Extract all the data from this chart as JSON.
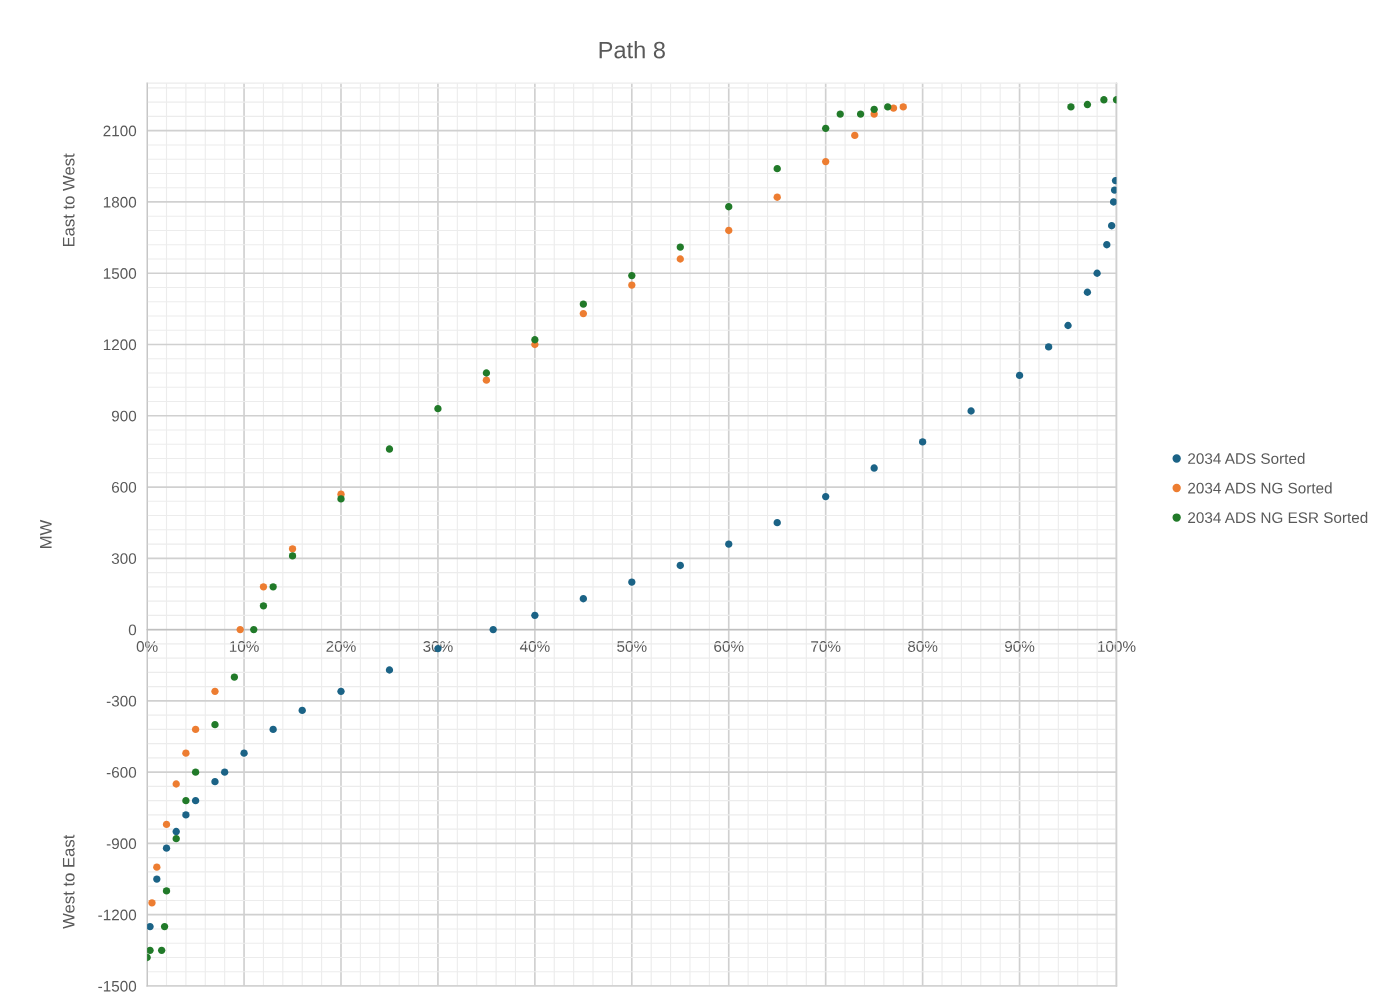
{
  "chart_data": {
    "type": "scatter",
    "title": "Path 8",
    "ylabel": "MW",
    "annotations": [
      "East to West",
      "West to East"
    ],
    "xlim": [
      0,
      100
    ],
    "xticks": [
      {
        "value": 0,
        "label": "0%"
      },
      {
        "value": 10,
        "label": "10%"
      },
      {
        "value": 20,
        "label": "20%"
      },
      {
        "value": 30,
        "label": "30%"
      },
      {
        "value": 40,
        "label": "40%"
      },
      {
        "value": 50,
        "label": "50%"
      },
      {
        "value": 60,
        "label": "60%"
      },
      {
        "value": 70,
        "label": "70%"
      },
      {
        "value": 80,
        "label": "80%"
      },
      {
        "value": 90,
        "label": "90%"
      },
      {
        "value": 100,
        "label": "100%"
      }
    ],
    "ylim": [
      -1500,
      2300
    ],
    "yticks": [
      -1500,
      -1200,
      -900,
      -600,
      -300,
      0,
      300,
      600,
      900,
      1200,
      1500,
      1800,
      2100
    ],
    "grid": true,
    "legend": "right",
    "marker": "circle",
    "series": [
      {
        "name": "2034 ADS Sorted",
        "color": "#1b6386",
        "x": [
          0.3,
          1,
          2,
          3,
          4,
          5,
          7,
          8,
          10,
          13,
          16,
          20,
          25,
          30,
          35.7,
          40,
          45,
          50,
          55,
          60,
          65,
          70,
          75,
          80,
          85,
          90,
          93,
          95,
          97,
          98,
          99,
          99.5,
          99.7,
          99.8,
          99.9
        ],
        "values": [
          -1250,
          -1050,
          -920,
          -850,
          -780,
          -720,
          -640,
          -600,
          -520,
          -420,
          -340,
          -260,
          -170,
          -80,
          0,
          60,
          130,
          200,
          270,
          360,
          450,
          560,
          680,
          790,
          920,
          1070,
          1190,
          1280,
          1420,
          1500,
          1620,
          1700,
          1800,
          1850,
          1890
        ]
      },
      {
        "name": "2034 ADS NG Sorted",
        "color": "#ed7d31",
        "x": [
          0.5,
          1,
          2,
          3,
          4,
          5,
          7,
          9.6,
          12,
          15,
          20,
          35,
          40,
          45,
          50,
          55,
          60,
          65,
          70,
          73,
          75,
          77,
          78
        ],
        "values": [
          -1150,
          -1000,
          -820,
          -650,
          -520,
          -420,
          -260,
          0,
          180,
          340,
          570,
          1050,
          1200,
          1330,
          1450,
          1560,
          1680,
          1820,
          1970,
          2080,
          2170,
          2195,
          2200
        ]
      },
      {
        "name": "2034 ADS NG ESR Sorted",
        "color": "#217a29",
        "x": [
          0,
          0.3,
          1.5,
          1.8,
          2,
          3,
          4,
          5,
          7,
          9,
          11,
          12,
          13,
          15,
          20,
          25,
          30,
          35,
          40,
          45,
          50,
          55,
          60,
          65,
          70,
          71.5,
          73.6,
          75,
          76.4,
          95.3,
          97,
          98.7,
          100
        ],
        "values": [
          -1380,
          -1350,
          -1350,
          -1250,
          -1100,
          -880,
          -720,
          -600,
          -400,
          -200,
          0,
          100,
          180,
          310,
          550,
          760,
          930,
          1080,
          1220,
          1370,
          1490,
          1610,
          1780,
          1940,
          2110,
          2170,
          2170,
          2190,
          2200,
          2200,
          2210,
          2230,
          2230
        ]
      }
    ]
  }
}
